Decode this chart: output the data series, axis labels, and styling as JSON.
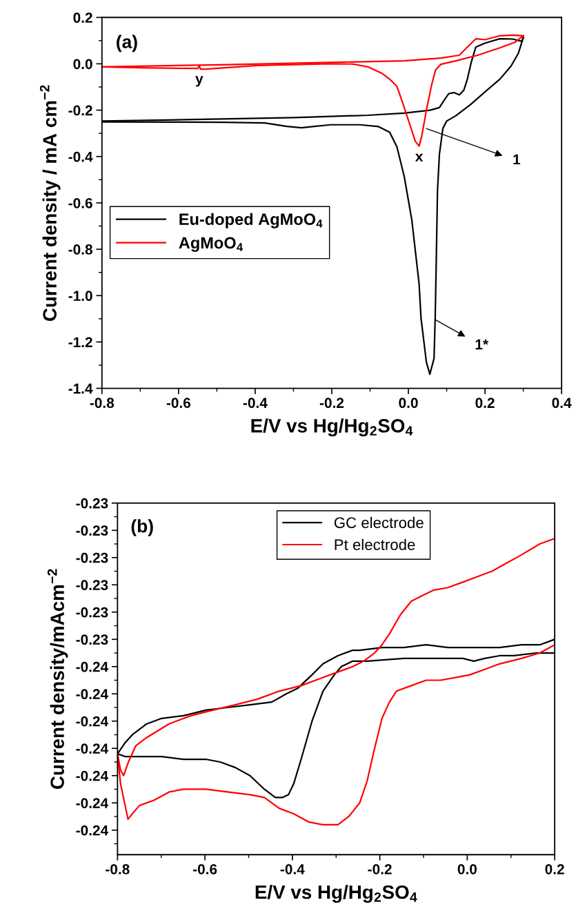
{
  "chart_data": [
    {
      "type": "line",
      "xlabel": "E/V vs Hg/Hg$_{2}$SO$_{4}$",
      "ylabel": "Current density / mA cm$^{−2}$",
      "xlim": [
        -0.8,
        0.4
      ],
      "ylim": [
        -1.4,
        0.2
      ],
      "xticks": [
        -0.8,
        -0.6,
        -0.4,
        -0.2,
        {
          "value": 0,
          "label": "0.0"
        },
        0.2,
        0.4
      ],
      "yticks": [
        -1.4,
        -1.2,
        {
          "value": -1,
          "label": "-1.0"
        },
        -0.8,
        -0.6,
        -0.4,
        -0.2,
        {
          "value": 0,
          "label": "0.0"
        },
        0.2
      ],
      "grid": false,
      "legend": "left",
      "marker": "none",
      "line_style": "solid",
      "annotations": [
        "(a)",
        {
          "text": "y",
          "x": -0.546,
          "y": -0.02
        },
        {
          "text": "x",
          "x": 0.028,
          "y": -0.355
        },
        "1",
        "1*"
      ],
      "series": [
        {
          "name": "Eu-doped AgMoO$_{4}$",
          "color": "#000000",
          "x": [
            -0.8,
            -0.586,
            -0.298,
            -0.106,
            -0.011,
            0.057,
            0.081,
            0.095,
            0.105,
            0.119,
            0.133,
            0.145,
            0.154,
            0.164,
            0.176,
            0.2,
            0.239,
            0.272,
            0.296,
            0.3
          ],
          "values": [
            -0.247,
            -0.241,
            -0.232,
            -0.222,
            -0.213,
            -0.2,
            -0.189,
            -0.153,
            -0.129,
            -0.124,
            -0.134,
            -0.113,
            -0.066,
            0.006,
            0.072,
            0.089,
            0.108,
            0.107,
            0.097,
            0.113
          ]
        },
        {
          "color": "#000000",
          "x": [
            0.3,
            0.287,
            0.268,
            0.239,
            0.2,
            0.162,
            0.124,
            0.1,
            0.09,
            0.081,
            0.076,
            0.073,
            0.07,
            0.067,
            0.056,
            0.047,
            0.033,
            0.028,
            0.009,
            -0.011,
            -0.03,
            -0.049,
            -0.078,
            -0.126,
            -0.202,
            -0.25,
            -0.279,
            -0.317,
            -0.375,
            -0.49,
            -0.8
          ],
          "values": [
            0.113,
            0.045,
            -0.01,
            -0.066,
            -0.121,
            -0.176,
            -0.224,
            -0.247,
            -0.279,
            -0.39,
            -0.548,
            -0.832,
            -1.097,
            -1.271,
            -1.339,
            -1.287,
            -1.097,
            -0.95,
            -0.674,
            -0.485,
            -0.358,
            -0.295,
            -0.271,
            -0.263,
            -0.263,
            -0.271,
            -0.276,
            -0.27,
            -0.255,
            -0.252,
            -0.251
          ]
        },
        {
          "name": "AgMoO$_{4}$",
          "color": "#ff0000",
          "x": [
            -0.8,
            -0.49,
            -0.202,
            -0.011,
            0.085,
            0.133,
            0.157,
            0.176,
            0.2,
            0.239,
            0.272,
            0.3
          ],
          "values": [
            -0.013,
            -0.004,
            0.006,
            0.013,
            0.025,
            0.037,
            0.077,
            0.108,
            0.104,
            0.121,
            0.124,
            0.121
          ]
        },
        {
          "color": "#ff0000",
          "x": [
            0.3,
            0.277,
            0.239,
            0.181,
            0.124,
            0.085,
            0.071,
            0.061,
            0.047,
            0.035,
            0.028,
            0.018,
            0.004,
            -0.015,
            -0.03,
            -0.049,
            -0.068,
            -0.106,
            -0.145,
            -0.202,
            -0.394,
            -0.529,
            -0.543,
            -0.546,
            -0.55,
            -0.682,
            -0.8
          ],
          "values": [
            0.121,
            0.092,
            0.069,
            0.037,
            0.013,
            -0.002,
            -0.026,
            -0.089,
            -0.2,
            -0.311,
            -0.355,
            -0.334,
            -0.263,
            -0.168,
            -0.097,
            -0.066,
            -0.042,
            -0.013,
            -0.001,
            0.0,
            -0.007,
            -0.023,
            -0.023,
            -0.007,
            -0.02,
            -0.018,
            -0.013
          ]
        }
      ]
    },
    {
      "type": "line",
      "xlabel": "E/V vs Hg/Hg$_{2}$SO$_{4}$",
      "ylabel": "Current density/mAcm$^{−2}$",
      "xlim": [
        -0.8,
        0.2
      ],
      "ylim": [
        -0.2419,
        -0.229
      ],
      "xticks": [
        -0.8,
        -0.6,
        -0.4,
        -0.2,
        {
          "value": 0,
          "label": "0.0"
        },
        0.2
      ],
      "yticks": [
        {
          "value": -0.241,
          "label": "-0.24"
        },
        {
          "value": -0.24,
          "label": "-0.24"
        },
        {
          "value": -0.239,
          "label": "-0.24"
        },
        {
          "value": -0.238,
          "label": "-0.24"
        },
        {
          "value": -0.237,
          "label": "-0.24"
        },
        {
          "value": -0.236,
          "label": "-0.24"
        },
        {
          "value": -0.235,
          "label": "-0.24"
        },
        {
          "value": -0.234,
          "label": "-0.23"
        },
        {
          "value": -0.233,
          "label": "-0.23"
        },
        {
          "value": -0.232,
          "label": "-0.23"
        },
        {
          "value": -0.231,
          "label": "-0.23"
        },
        {
          "value": -0.23,
          "label": "-0.23"
        },
        {
          "value": -0.229,
          "label": "-0.23"
        }
      ],
      "grid": false,
      "legend": "top",
      "marker": "none",
      "line_style": "solid",
      "annotations": [
        "(b)"
      ],
      "series": [
        {
          "name": "GC electrode",
          "color": "#000000",
          "x": [
            -0.8,
            -0.783,
            -0.766,
            -0.733,
            -0.699,
            -0.649,
            -0.598,
            -0.548,
            -0.497,
            -0.447,
            -0.414,
            -0.388,
            -0.355,
            -0.33,
            -0.296,
            -0.262,
            -0.246,
            -0.195,
            -0.145,
            -0.094,
            -0.044,
            0.006,
            0.04,
            0.074,
            0.124,
            0.166,
            0.2
          ],
          "values": [
            -0.2382,
            -0.2378,
            -0.2375,
            -0.2371,
            -0.2369,
            -0.2368,
            -0.2366,
            -0.2365,
            -0.2364,
            -0.2363,
            -0.236,
            -0.2358,
            -0.2353,
            -0.2349,
            -0.2346,
            -0.2344,
            -0.2344,
            -0.2343,
            -0.2343,
            -0.2342,
            -0.2343,
            -0.2343,
            -0.2343,
            -0.2343,
            -0.2342,
            -0.2342,
            -0.234
          ]
        },
        {
          "color": "#000000",
          "x": [
            0.2,
            0.158,
            0.107,
            0.074,
            0.04,
            0.015,
            -0.01,
            -0.061,
            -0.145,
            -0.229,
            -0.262,
            -0.288,
            -0.304,
            -0.33,
            -0.355,
            -0.38,
            -0.397,
            -0.409,
            -0.422,
            -0.439,
            -0.464,
            -0.497,
            -0.531,
            -0.565,
            -0.598,
            -0.649,
            -0.699,
            -0.733,
            -0.766,
            -0.783,
            -0.8
          ],
          "values": [
            -0.2345,
            -0.2345,
            -0.2346,
            -0.2346,
            -0.2347,
            -0.2348,
            -0.2347,
            -0.2347,
            -0.2347,
            -0.2348,
            -0.2348,
            -0.235,
            -0.2353,
            -0.2359,
            -0.237,
            -0.2384,
            -0.2393,
            -0.2397,
            -0.2398,
            -0.2398,
            -0.2395,
            -0.239,
            -0.2387,
            -0.2385,
            -0.2384,
            -0.2384,
            -0.2383,
            -0.2383,
            -0.2383,
            -0.2383,
            -0.2382
          ]
        },
        {
          "name": "Pt electrode",
          "color": "#ff0000",
          "x": [
            -0.8,
            -0.793,
            -0.776,
            -0.766,
            -0.75,
            -0.716,
            -0.682,
            -0.649,
            -0.598,
            -0.548,
            -0.497,
            -0.464,
            -0.43,
            -0.397,
            -0.363,
            -0.33,
            -0.296,
            -0.271,
            -0.246,
            -0.229,
            -0.212,
            -0.195,
            -0.178,
            -0.162,
            -0.128,
            -0.094,
            -0.061,
            -0.027,
            0.006,
            0.04,
            0.074,
            0.124,
            0.166,
            0.2
          ],
          "values": [
            -0.2382,
            -0.2393,
            -0.2406,
            -0.2404,
            -0.2401,
            -0.2399,
            -0.2396,
            -0.2395,
            -0.2395,
            -0.2396,
            -0.2397,
            -0.2398,
            -0.2402,
            -0.2404,
            -0.2407,
            -0.2408,
            -0.2408,
            -0.2405,
            -0.24,
            -0.2392,
            -0.238,
            -0.2369,
            -0.2363,
            -0.2359,
            -0.2357,
            -0.2355,
            -0.2355,
            -0.2354,
            -0.2353,
            -0.2351,
            -0.2349,
            -0.2347,
            -0.2345,
            -0.2342
          ]
        },
        {
          "color": "#ff0000",
          "x": [
            0.2,
            0.166,
            0.124,
            0.09,
            0.057,
            0.023,
            -0.01,
            -0.044,
            -0.078,
            -0.103,
            -0.128,
            -0.153,
            -0.178,
            -0.195,
            -0.212,
            -0.237,
            -0.262,
            -0.296,
            -0.33,
            -0.38,
            -0.43,
            -0.481,
            -0.531,
            -0.582,
            -0.632,
            -0.682,
            -0.733,
            -0.758,
            -0.775,
            -0.786,
            -0.793,
            -0.8
          ],
          "values": [
            -0.2303,
            -0.2305,
            -0.2309,
            -0.2312,
            -0.2315,
            -0.2317,
            -0.2319,
            -0.2321,
            -0.2322,
            -0.2324,
            -0.2326,
            -0.2331,
            -0.2338,
            -0.2342,
            -0.2345,
            -0.2348,
            -0.235,
            -0.2352,
            -0.2354,
            -0.2357,
            -0.2359,
            -0.2362,
            -0.2364,
            -0.2366,
            -0.2368,
            -0.2371,
            -0.2376,
            -0.2379,
            -0.2385,
            -0.239,
            -0.2388,
            -0.2382
          ]
        }
      ]
    }
  ]
}
